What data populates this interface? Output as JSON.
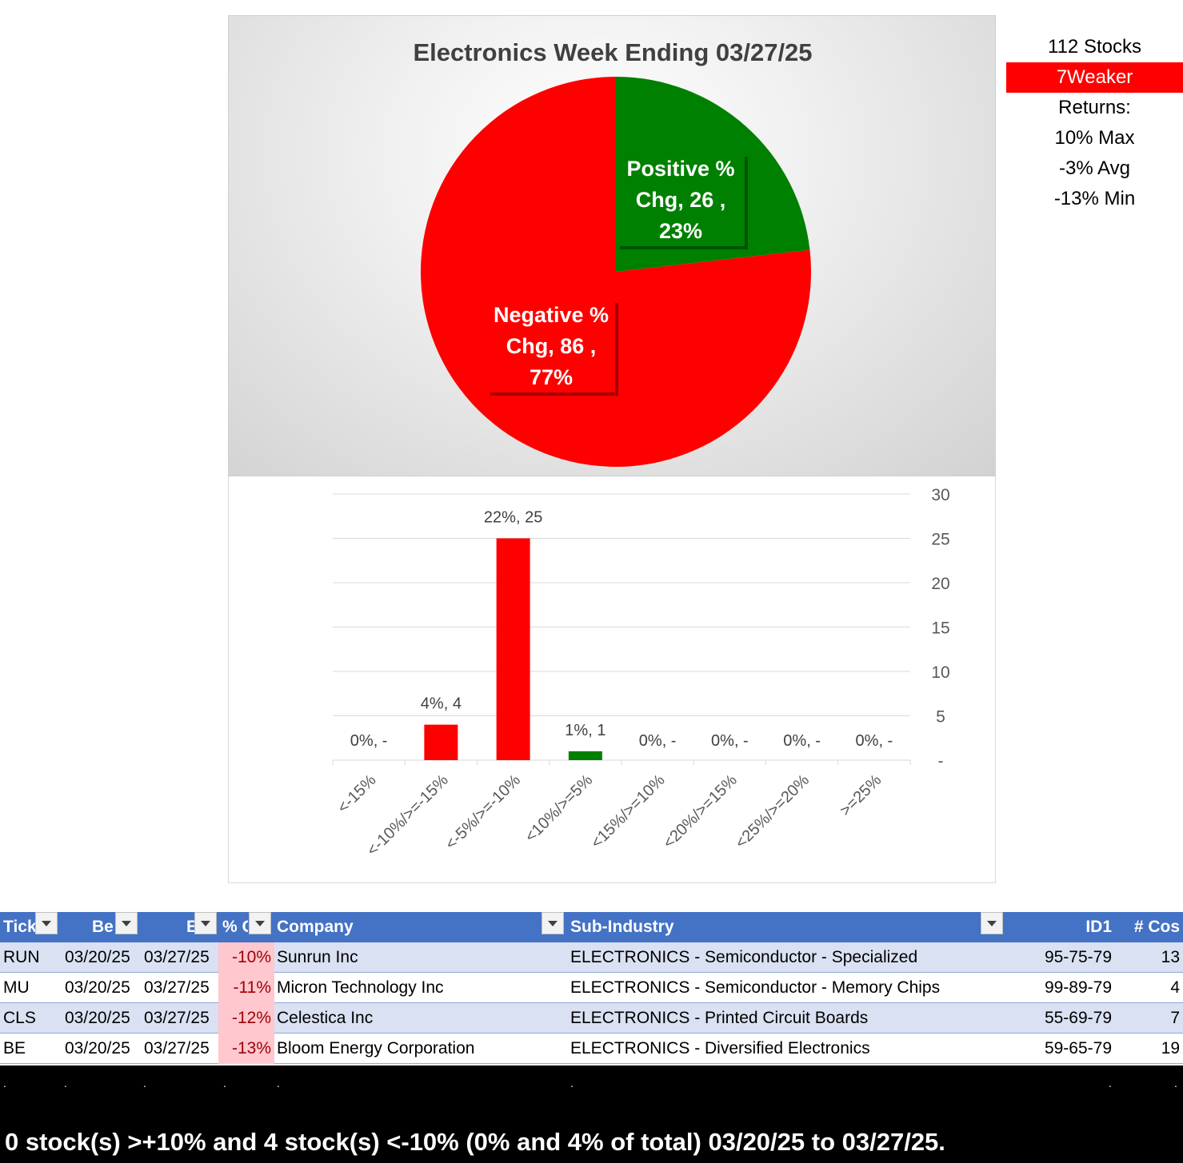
{
  "summary": {
    "stocks": "112 Stocks",
    "weaker": "7Weaker",
    "returns_label": "Returns:",
    "max": "10% Max",
    "avg": "-3% Avg",
    "min": "-13% Min"
  },
  "colors": {
    "negative": "#ff0000",
    "positive": "#008000",
    "header": "#4472c4",
    "row_alt": "#d9e1f2",
    "pct_bg": "#ffc7ce",
    "pct_text": "#9c0006"
  },
  "chart_data": [
    {
      "type": "pie",
      "title": "Electronics Week Ending 03/27/25",
      "slices": [
        {
          "name": "Positive % Chg",
          "value": 26,
          "percent": "23%",
          "color": "#008000",
          "label_lines": [
            "Positive %",
            "Chg,  26 ,",
            "23%"
          ]
        },
        {
          "name": "Negative % Chg",
          "value": 86,
          "percent": "77%",
          "color": "#ff0000",
          "label_lines": [
            "Negative %",
            "Chg,  86 ,",
            "77%"
          ]
        }
      ]
    },
    {
      "type": "bar",
      "categories": [
        "<-15%",
        "<-10%/>=-15%",
        "<-5%/>=-10%",
        "<10%/>=5%",
        "<15%/>=10%",
        "<20%/>=15%",
        "<25%/>=20%",
        ">=25%"
      ],
      "values": [
        0,
        4,
        25,
        1,
        0,
        0,
        0,
        0
      ],
      "colors": [
        "#ff0000",
        "#ff0000",
        "#ff0000",
        "#008000",
        "#008000",
        "#008000",
        "#008000",
        "#008000"
      ],
      "data_labels": [
        "0%,  -",
        "4%,  4",
        "22%,  25",
        "1%,  1",
        "0%,  -",
        "0%,  -",
        "0%,  -",
        "0%,  -"
      ],
      "ylim": [
        0,
        30
      ],
      "yticks": [
        0,
        5,
        10,
        15,
        20,
        25,
        30
      ],
      "ytick_labels": [
        "-",
        "5",
        "10",
        "15",
        "20",
        "25",
        "30"
      ],
      "y_axis_side": "right",
      "grid": true
    }
  ],
  "table": {
    "headers": [
      "Tick",
      "Be",
      "E",
      "% C",
      "Company",
      "Sub-Industry",
      "ID1",
      "# Cos"
    ],
    "rows": [
      [
        "RUN",
        "03/20/25",
        "03/27/25",
        "-10%",
        "Sunrun Inc",
        "ELECTRONICS - Semiconductor - Specialized",
        "95-75-79",
        "13"
      ],
      [
        "MU",
        "03/20/25",
        "03/27/25",
        "-11%",
        "Micron Technology Inc",
        "ELECTRONICS - Semiconductor - Memory Chips",
        "99-89-79",
        "4"
      ],
      [
        "CLS",
        "03/20/25",
        "03/27/25",
        "-12%",
        "Celestica Inc",
        "ELECTRONICS - Printed Circuit Boards",
        "55-69-79",
        "7"
      ],
      [
        "BE",
        "03/20/25",
        "03/27/25",
        "-13%",
        "Bloom Energy Corporation",
        "ELECTRONICS - Diversified Electronics",
        "59-65-79",
        "19"
      ]
    ]
  },
  "footer": {
    "dots": ".",
    "text": "0 stock(s) >+10% and 4 stock(s) <-10% (0% and 4% of total) 03/20/25 to 03/27/25."
  }
}
